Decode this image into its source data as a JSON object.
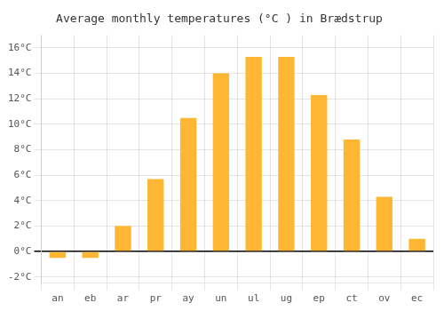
{
  "chart_data": {
    "type": "bar",
    "title": "Average monthly temperatures (°C ) in Brædstrup",
    "categories": [
      "an",
      "eb",
      "ar",
      "pr",
      "ay",
      "un",
      "ul",
      "ug",
      "ep",
      "ct",
      "ov",
      "ec"
    ],
    "values": [
      -0.5,
      -0.5,
      2.0,
      5.7,
      10.5,
      14.0,
      15.3,
      15.3,
      12.3,
      8.8,
      4.3,
      1.0
    ],
    "color": "#FFB733",
    "ylim": [
      -2.5,
      17.0
    ],
    "yticks": [
      {
        "value": -2,
        "label": "-2°C"
      },
      {
        "value": 0,
        "label": "0°C"
      },
      {
        "value": 2,
        "label": "2°C"
      },
      {
        "value": 4,
        "label": "4°C"
      },
      {
        "value": 6,
        "label": "6°C"
      },
      {
        "value": 8,
        "label": "8°C"
      },
      {
        "value": 10,
        "label": "10°C"
      },
      {
        "value": 12,
        "label": "12°C"
      },
      {
        "value": 14,
        "label": "14°C"
      },
      {
        "value": 16,
        "label": "16°C"
      }
    ],
    "grid": true
  }
}
